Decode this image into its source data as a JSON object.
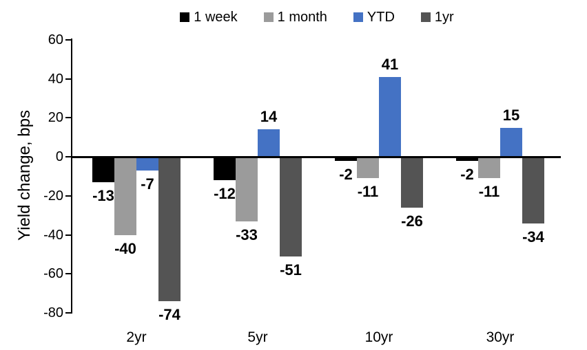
{
  "chart_data": {
    "type": "bar",
    "title": "",
    "ylabel": "Yield change, bps",
    "xlabel": "",
    "ylim": [
      -80,
      60
    ],
    "yticks": [
      60,
      40,
      20,
      0,
      -20,
      -40,
      -60,
      -80
    ],
    "grid": false,
    "legend_position": "top",
    "data_labels": true,
    "categories": [
      "2yr",
      "5yr",
      "10yr",
      "30yr"
    ],
    "series": [
      {
        "name": "1 week",
        "color": "#000000",
        "values": [
          -13,
          -12,
          -2,
          -2
        ]
      },
      {
        "name": "1 month",
        "color": "#9b9b9b",
        "values": [
          -40,
          -33,
          -11,
          -11
        ]
      },
      {
        "name": "YTD",
        "color": "#4472c4",
        "values": [
          -7,
          14,
          41,
          15
        ]
      },
      {
        "name": "1yr",
        "color": "#545454",
        "values": [
          -74,
          -51,
          -26,
          -34
        ]
      }
    ]
  }
}
